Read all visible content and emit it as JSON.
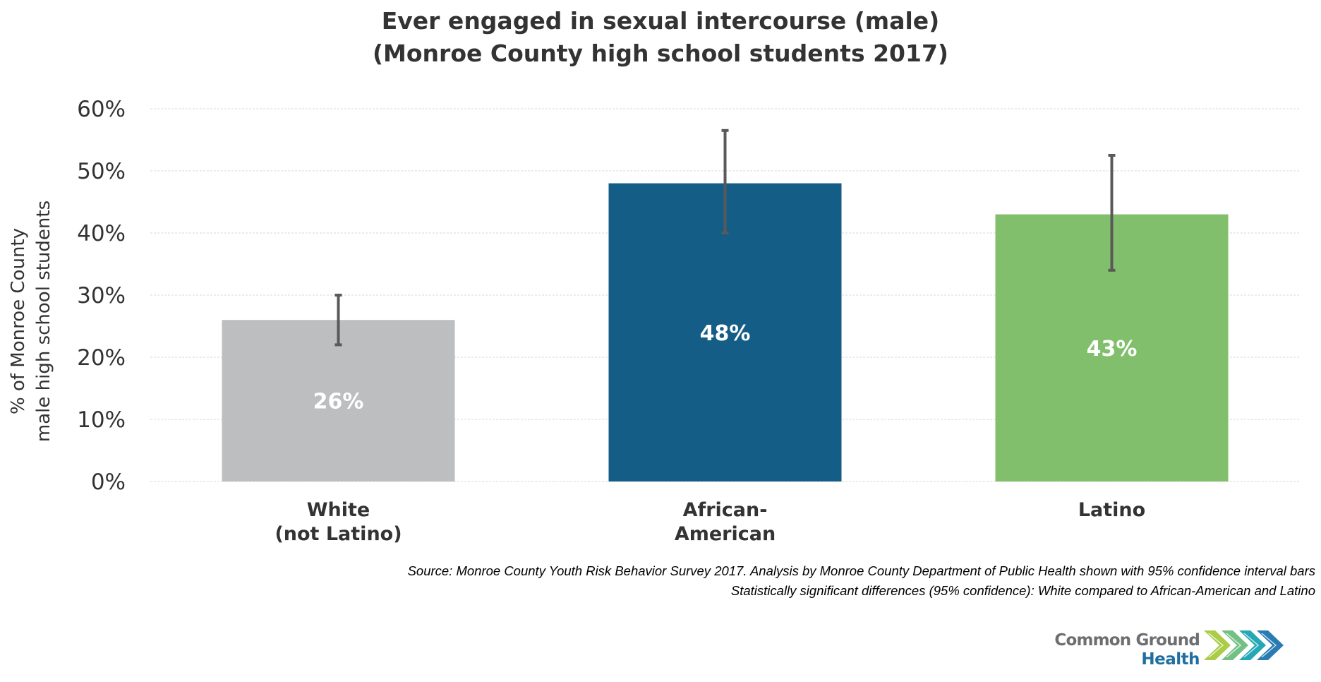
{
  "chart_data": {
    "type": "bar",
    "title": [
      "Ever engaged in sexual intercourse (male)",
      "(Monroe County high school students 2017)"
    ],
    "ylabel": [
      "% of Monroe County",
      "male high school students"
    ],
    "xlabel": "",
    "ylim": [
      0,
      60
    ],
    "yticks": [
      0,
      10,
      20,
      30,
      40,
      50,
      60
    ],
    "ytick_labels": [
      "0%",
      "10%",
      "20%",
      "30%",
      "40%",
      "50%",
      "60%"
    ],
    "grid": true,
    "categories": [
      [
        "White",
        "(not Latino)"
      ],
      [
        "African-",
        "American"
      ],
      [
        "Latino"
      ]
    ],
    "values": [
      26,
      48,
      43
    ],
    "data_labels": [
      "26%",
      "48%",
      "43%"
    ],
    "error_bars": [
      {
        "low": 22,
        "high": 30
      },
      {
        "low": 40,
        "high": 56.5
      },
      {
        "low": 34,
        "high": 52.5
      }
    ],
    "colors": [
      "#bcbec0",
      "#135d86",
      "#82bf6c"
    ],
    "error_bar_color": "#595959",
    "notes": [
      "Source: Monroe County Youth Risk Behavior Survey 2017.  Analysis by Monroe County Department of Public Health shown with 95% confidence interval bars",
      "Statistically significant differences (95% confidence): White compared to African-American and Latino"
    ]
  },
  "logo": {
    "line1": "Common Ground",
    "line2": "Health",
    "chevron_colors": [
      "#a6c93c",
      "#6cbd7d",
      "#1aa3b0",
      "#1d75ae",
      "#1a4f86"
    ]
  }
}
